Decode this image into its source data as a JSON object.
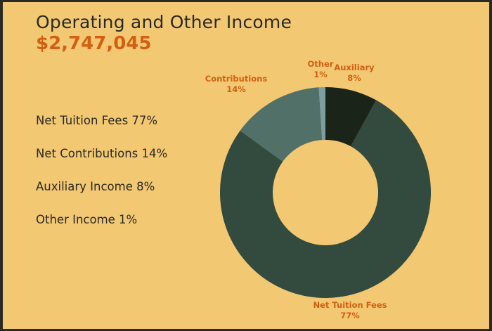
{
  "header": {
    "title": "Operating and Other Income",
    "total": "$2,747,045"
  },
  "legend": [
    "Net Tuition Fees 77%",
    "Net Contributions 14%",
    "Auxiliary Income 8%",
    "Other Income 1%"
  ],
  "colors": {
    "background": "#f3c873",
    "accent": "#d35f12",
    "text": "#2a2a24",
    "slices": [
      "#1b2418",
      "#334a3e",
      "#507068",
      "#7d9ea0"
    ]
  },
  "chart_data": {
    "type": "pie",
    "title": "Operating and Other Income",
    "subtitle": "$2,747,045",
    "donut": true,
    "slices": [
      {
        "name": "Auxiliary",
        "value": 8,
        "label_lines": [
          "Auxiliary",
          "8%"
        ],
        "color": "#1b2418"
      },
      {
        "name": "Net Tuition Fees",
        "value": 77,
        "label_lines": [
          "Net Tuition Fees",
          "77%"
        ],
        "color": "#334a3e"
      },
      {
        "name": "Contributions",
        "value": 14,
        "label_lines": [
          "Contributions",
          "14%"
        ],
        "color": "#507068"
      },
      {
        "name": "Other",
        "value": 1,
        "label_lines": [
          "Other",
          "1%"
        ],
        "color": "#7d9ea0"
      }
    ]
  }
}
